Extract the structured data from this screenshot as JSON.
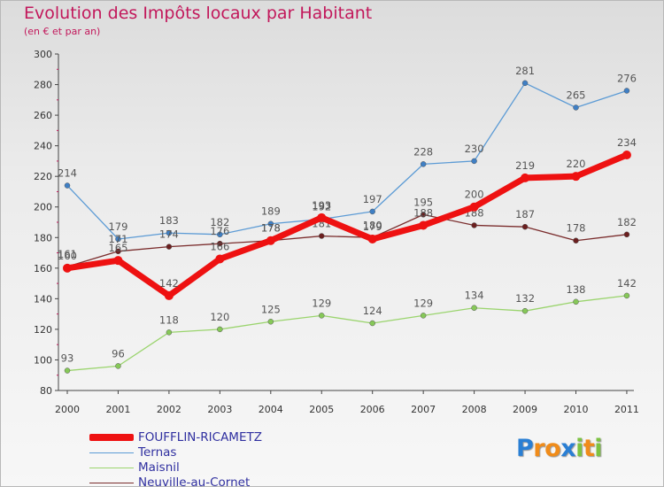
{
  "chart_data": {
    "type": "line",
    "title": "Evolution des Impôts locaux par Habitant",
    "subtitle": "(en € et par an)",
    "x": [
      "2000",
      "2001",
      "2002",
      "2003",
      "2004",
      "2005",
      "2006",
      "2007",
      "2008",
      "2009",
      "2010",
      "2011"
    ],
    "ylim": [
      80,
      300
    ],
    "yticks": [
      80,
      100,
      120,
      140,
      160,
      180,
      200,
      220,
      240,
      260,
      280,
      300
    ],
    "grid": false,
    "series": [
      {
        "name": "Ternas",
        "color": "#5c9bd5",
        "marker": "#3f7fc4",
        "values": [
          214,
          179,
          183,
          182,
          189,
          192,
          197,
          228,
          230,
          281,
          265,
          276
        ]
      },
      {
        "name": "Maisnil",
        "color": "#9ad46d",
        "marker": "#86c858",
        "values": [
          93,
          96,
          118,
          120,
          125,
          129,
          124,
          129,
          134,
          132,
          138,
          142
        ]
      },
      {
        "name": "Neuville-au-Cornet",
        "color": "#7a2c2c",
        "marker": "#6b1f1f",
        "values": [
          161,
          171,
          174,
          176,
          178,
          181,
          180,
          195,
          188,
          187,
          178,
          182
        ]
      },
      {
        "name": "FOUFFLIN-RICAMETZ",
        "color": "#ee1111",
        "marker": "#ee1111",
        "values": [
          160,
          165,
          142,
          166,
          178,
          193,
          179,
          188,
          200,
          219,
          220,
          234
        ]
      }
    ],
    "legend": [
      "FOUFFLIN-RICAMETZ",
      "Ternas",
      "Maisnil",
      "Neuville-au-Cornet"
    ],
    "legend_position": "bottom-left"
  },
  "logo": {
    "letters": [
      "P",
      "r",
      "o",
      "x",
      "i",
      "t",
      "i"
    ],
    "colors": [
      "#2a7fd4",
      "#f08c1a",
      "#f08c1a",
      "#2a7fd4",
      "#7dc242",
      "#f08c1a",
      "#7dc242"
    ]
  }
}
